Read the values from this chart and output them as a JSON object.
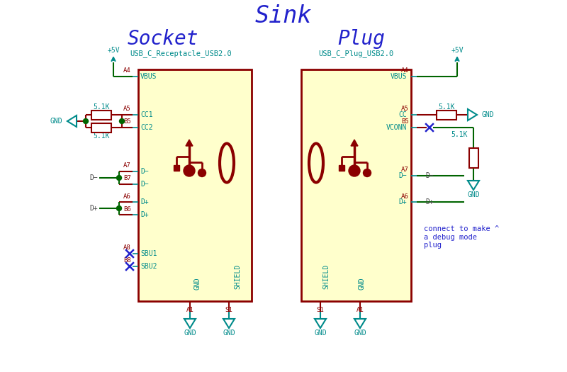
{
  "title": "Sink",
  "socket_label": "Socket",
  "plug_label": "Plug",
  "socket_ref": "USB_C_Receptacle_USB2.0",
  "plug_ref": "USB_C_Plug_USB2.0",
  "debug_note": "connect to make ^\na debug mode\nplug",
  "DR": "#8B0000",
  "LY": "#FFFFCC",
  "CY": "#008B8B",
  "GR": "#006400",
  "BL": "#2222CC",
  "RP": "#8B0000",
  "DGY": "#444444",
  "SLX": 195,
  "SRX": 355,
  "STY": 98,
  "SBY": 425,
  "PLX": 425,
  "PRX": 580,
  "PTY": 98,
  "PBY": 425
}
